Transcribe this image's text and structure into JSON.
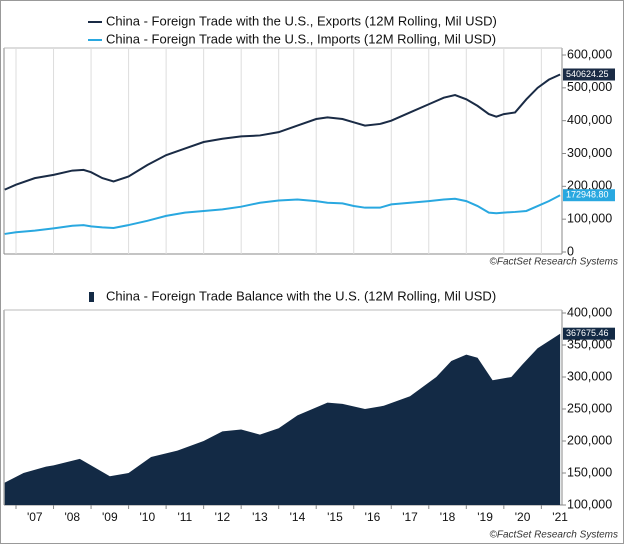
{
  "chart_data": [
    {
      "type": "line",
      "x": [
        2006.7,
        2007.0,
        2007.5,
        2008.0,
        2008.5,
        2008.8,
        2009.0,
        2009.3,
        2009.6,
        2010.0,
        2010.5,
        2011.0,
        2011.5,
        2012.0,
        2012.5,
        2013.0,
        2013.5,
        2014.0,
        2014.5,
        2015.0,
        2015.3,
        2015.7,
        2016.0,
        2016.3,
        2016.7,
        2017.0,
        2017.5,
        2018.0,
        2018.4,
        2018.7,
        2019.0,
        2019.3,
        2019.6,
        2019.8,
        2020.0,
        2020.3,
        2020.6,
        2020.9,
        2021.2,
        2021.5
      ],
      "series": [
        {
          "name": "China - Foreign Trade with the U.S., Exports (12M Rolling, Mil USD)",
          "color": "#1a2b45",
          "values": [
            190000,
            205000,
            225000,
            235000,
            248000,
            250000,
            243000,
            225000,
            215000,
            230000,
            265000,
            295000,
            315000,
            335000,
            345000,
            352000,
            355000,
            365000,
            385000,
            405000,
            410000,
            405000,
            395000,
            385000,
            390000,
            400000,
            425000,
            450000,
            470000,
            478000,
            465000,
            445000,
            420000,
            412000,
            420000,
            425000,
            465000,
            500000,
            525000,
            540624.25
          ],
          "value_labels": [
            null,
            null,
            null,
            null,
            null,
            null,
            null,
            null,
            null,
            null,
            null,
            null,
            null,
            null,
            null,
            null,
            null,
            null,
            null,
            null,
            null,
            null,
            null,
            null,
            null,
            null,
            null,
            null,
            null,
            null,
            null,
            null,
            null,
            null,
            null,
            null,
            null,
            null,
            null,
            "540624.25"
          ]
        },
        {
          "name": "China - Foreign Trade with the U.S., Imports (12M Rolling, Mil USD)",
          "color": "#29a8e0",
          "values": [
            55000,
            60000,
            65000,
            72000,
            80000,
            82000,
            78000,
            75000,
            73000,
            82000,
            95000,
            110000,
            120000,
            125000,
            130000,
            138000,
            150000,
            157000,
            160000,
            155000,
            150000,
            148000,
            140000,
            135000,
            135000,
            145000,
            150000,
            155000,
            160000,
            162000,
            155000,
            140000,
            120000,
            118000,
            120000,
            122000,
            125000,
            140000,
            155000,
            172948.8
          ],
          "value_labels": [
            null,
            null,
            null,
            null,
            null,
            null,
            null,
            null,
            null,
            null,
            null,
            null,
            null,
            null,
            null,
            null,
            null,
            null,
            null,
            null,
            null,
            null,
            null,
            null,
            null,
            null,
            null,
            null,
            null,
            null,
            null,
            null,
            null,
            null,
            null,
            null,
            null,
            null,
            null,
            "172948.80"
          ]
        }
      ],
      "xlim": [
        2006.68,
        2021.55
      ],
      "xticks": [
        2007,
        2008,
        2009,
        2010,
        2011,
        2012,
        2013,
        2014,
        2015,
        2016,
        2017,
        2018,
        2019,
        2020,
        2021
      ],
      "ylim": [
        0,
        600000
      ],
      "yticks": [
        0,
        {
          "value": 100000,
          "label": "100,000"
        },
        {
          "value": 200000,
          "label": "200,000"
        },
        {
          "value": 300000,
          "label": "300,000"
        },
        {
          "value": 400000,
          "label": "400,000"
        },
        {
          "value": 500000,
          "label": "500,000"
        },
        {
          "value": 600000,
          "label": "600,000"
        }
      ],
      "grid": true,
      "source": "©FactSet Research Systems"
    },
    {
      "type": "area",
      "x": [
        2006.7,
        2007.2,
        2007.8,
        2008.0,
        2008.7,
        2009.0,
        2009.5,
        2010.0,
        2010.6,
        2011.3,
        2012.0,
        2012.5,
        2013.0,
        2013.5,
        2014.0,
        2014.5,
        2015.3,
        2015.7,
        2016.3,
        2016.8,
        2017.5,
        2018.2,
        2018.6,
        2019.0,
        2019.3,
        2019.7,
        2020.2,
        2020.5,
        2020.9,
        2021.5
      ],
      "series": [
        {
          "name": "China - Foreign Trade Balance with the U.S. (12M Rolling, Mil USD)",
          "color": "#132a45",
          "values": [
            135000,
            150000,
            160000,
            162000,
            172000,
            162000,
            145000,
            150000,
            175000,
            185000,
            200000,
            215000,
            218000,
            210000,
            220000,
            240000,
            260000,
            258000,
            250000,
            255000,
            270000,
            300000,
            325000,
            335000,
            330000,
            295000,
            300000,
            320000,
            345000,
            367675.46
          ]
        }
      ],
      "xlim": [
        2006.68,
        2021.55
      ],
      "xticks": [
        {
          "value": 2007,
          "label": "'07"
        },
        {
          "value": 2008,
          "label": "'08"
        },
        {
          "value": 2009,
          "label": "'09"
        },
        {
          "value": 2010,
          "label": "'10"
        },
        {
          "value": 2011,
          "label": "'11"
        },
        {
          "value": 2012,
          "label": "'12"
        },
        {
          "value": 2013,
          "label": "'13"
        },
        {
          "value": 2014,
          "label": "'14"
        },
        {
          "value": 2015,
          "label": "'15"
        },
        {
          "value": 2016,
          "label": "'16"
        },
        {
          "value": 2017,
          "label": "'17"
        },
        {
          "value": 2018,
          "label": "'18"
        },
        {
          "value": 2019,
          "label": "'19"
        },
        {
          "value": 2020,
          "label": "'20"
        },
        {
          "value": 2021,
          "label": "'21"
        }
      ],
      "ylim": [
        100000,
        400000
      ],
      "yticks": [
        {
          "value": 100000,
          "label": "100,000"
        },
        {
          "value": 150000,
          "label": "150,000"
        },
        {
          "value": 200000,
          "label": "200,000"
        },
        {
          "value": 250000,
          "label": "250,000"
        },
        {
          "value": 300000,
          "label": "300,000"
        },
        {
          "value": 350000,
          "label": "350,000"
        },
        {
          "value": 400000,
          "label": "400,000"
        }
      ],
      "grid": false,
      "show_last_label": true,
      "source": "©FactSet Research Systems"
    }
  ]
}
